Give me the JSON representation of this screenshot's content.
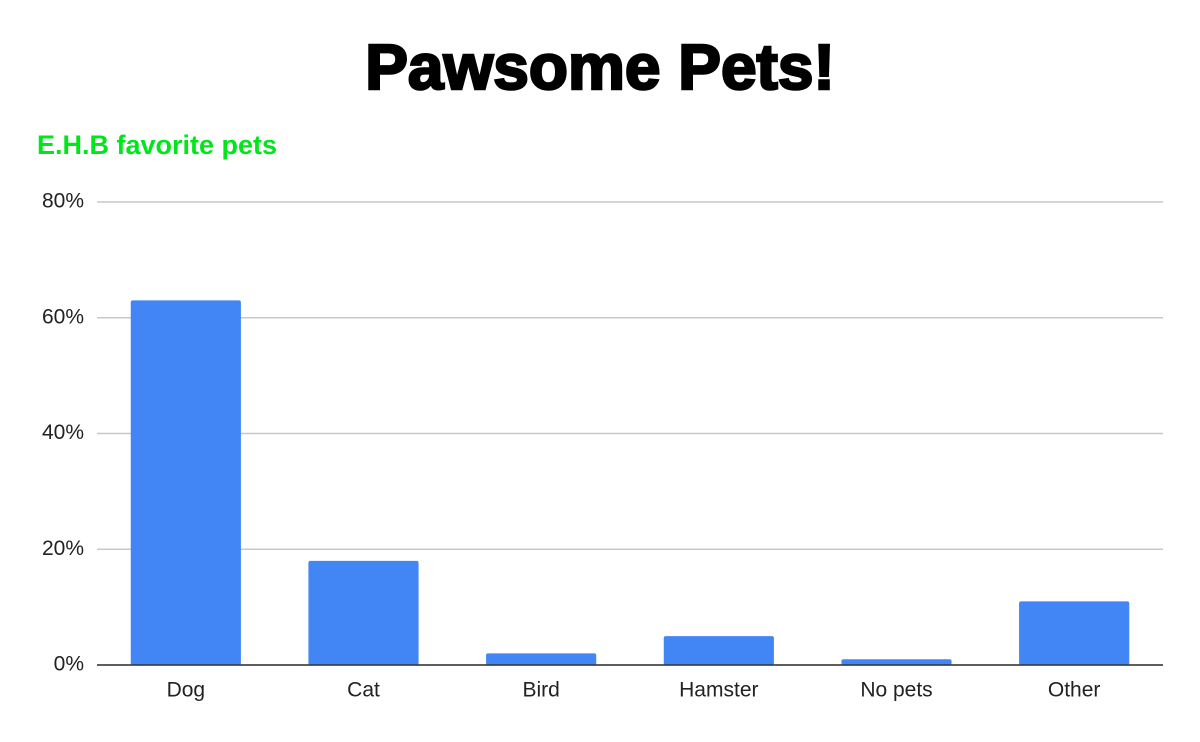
{
  "chart_data": {
    "type": "bar",
    "title": "Pawsome Pets!",
    "subtitle": "E.H.B favorite pets",
    "categories": [
      "Dog",
      "Cat",
      "Bird",
      "Hamster",
      "No pets",
      "Other"
    ],
    "values": [
      63,
      18,
      2,
      5,
      1,
      11
    ],
    "color": "#4285f4",
    "ylim": [
      0,
      80
    ],
    "yticks": [
      {
        "value": 0,
        "label": "0%"
      },
      {
        "value": 20,
        "label": "20%"
      },
      {
        "value": 40,
        "label": "40%"
      },
      {
        "value": 60,
        "label": "60%"
      },
      {
        "value": 80,
        "label": "80%"
      }
    ],
    "grid": true
  }
}
